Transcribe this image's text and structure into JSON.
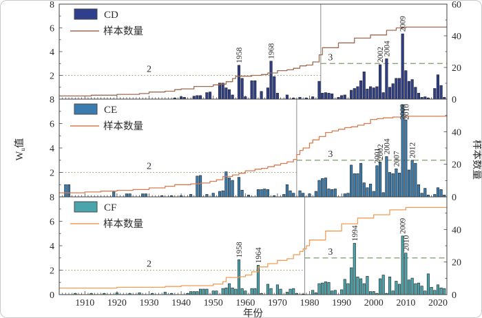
{
  "axes": {
    "x_range": [
      1902,
      2022.8
    ],
    "x_ticks": [
      1910,
      1920,
      1930,
      1940,
      1950,
      1960,
      1970,
      1980,
      1990,
      2000,
      2010,
      2020
    ],
    "x_label": "年份",
    "y_left_ticks": [
      0,
      2,
      4,
      6,
      8
    ],
    "y_right_ticks": [
      0,
      20,
      40,
      60
    ],
    "y_left_label": {
      "pre": "W",
      "sub": "u",
      "post": "值"
    },
    "y_right_label": "样本数量"
  },
  "styles": {
    "axis_color": "#3f3f3f",
    "bar_stroke": "#1f1f1f",
    "threshold_dotted_color": "#8f9d68",
    "threshold_dashed_color": "#7c9b66",
    "changepoint_color": "#8a8a8a",
    "text_color": "#2b2b2b"
  },
  "chart_data": [
    {
      "type": "bar",
      "name": "CD",
      "legend": {
        "bars": "CD",
        "line": "样本数量"
      },
      "colors": {
        "bar": "#2f3f8c",
        "line": "#9e6a52"
      },
      "ylim_left": [
        0,
        8
      ],
      "ylim_right": [
        0,
        60
      ],
      "change_point": 1983.5,
      "threshold_before": {
        "value": 2,
        "label": "2",
        "label_year": 1930
      },
      "threshold_after": {
        "value": 3,
        "label": "3",
        "label_year": 1986.5
      },
      "annotations": [
        1958,
        1968,
        2002,
        2004,
        2009
      ],
      "bars": [
        [
          1938,
          0.1
        ],
        [
          1940,
          0.2
        ],
        [
          1941,
          0.15
        ],
        [
          1944,
          0.25
        ],
        [
          1945,
          0.3
        ],
        [
          1946,
          0.3
        ],
        [
          1948,
          0.55
        ],
        [
          1949,
          0.6
        ],
        [
          1952,
          1.35
        ],
        [
          1953,
          1.35
        ],
        [
          1954,
          0.95
        ],
        [
          1955,
          0.8
        ],
        [
          1956,
          0.35
        ],
        [
          1958,
          2.85
        ],
        [
          1959,
          1.75
        ],
        [
          1960,
          0.2
        ],
        [
          1962,
          1.55
        ],
        [
          1963,
          1.55
        ],
        [
          1965,
          0.65
        ],
        [
          1967,
          0.95
        ],
        [
          1968,
          3.2
        ],
        [
          1969,
          1.9
        ],
        [
          1970,
          0.5
        ],
        [
          1973,
          0.35
        ],
        [
          1975,
          0.1
        ],
        [
          1977,
          0.15
        ],
        [
          1979,
          0.1
        ],
        [
          1981,
          0.2
        ],
        [
          1983,
          1.5
        ],
        [
          1984,
          0.5
        ],
        [
          1985,
          0.55
        ],
        [
          1986,
          0.5
        ],
        [
          1987,
          0.45
        ],
        [
          1989,
          0.15
        ],
        [
          1990,
          0.3
        ],
        [
          1991,
          0.35
        ],
        [
          1993,
          0.75
        ],
        [
          1994,
          0.9
        ],
        [
          1995,
          1.05
        ],
        [
          1996,
          1.55
        ],
        [
          1997,
          2.3
        ],
        [
          1998,
          0.85
        ],
        [
          1999,
          1.05
        ],
        [
          2000,
          0.95
        ],
        [
          2001,
          1.05
        ],
        [
          2002,
          2.9
        ],
        [
          2003,
          0.55
        ],
        [
          2004,
          3.4
        ],
        [
          2005,
          1.0
        ],
        [
          2006,
          1.3
        ],
        [
          2007,
          1.75
        ],
        [
          2008,
          1.75
        ],
        [
          2009,
          5.5
        ],
        [
          2010,
          2.4
        ],
        [
          2011,
          1.5
        ],
        [
          2012,
          1.65
        ],
        [
          2013,
          1.0
        ],
        [
          2014,
          0.5
        ],
        [
          2015,
          0.15
        ],
        [
          2016,
          0.2
        ],
        [
          2017,
          0.1
        ],
        [
          2019,
          0.9
        ],
        [
          2020,
          2.05
        ],
        [
          2021,
          1.15
        ],
        [
          2022,
          0.15
        ]
      ],
      "samples": [
        [
          1903,
          2
        ],
        [
          1912,
          2.5
        ],
        [
          1920,
          3
        ],
        [
          1927,
          3.5
        ],
        [
          1930,
          4.5
        ],
        [
          1935,
          5
        ],
        [
          1938,
          6
        ],
        [
          1940,
          6.5
        ],
        [
          1944,
          8
        ],
        [
          1950,
          9
        ],
        [
          1952,
          9.5
        ],
        [
          1954,
          11
        ],
        [
          1956,
          13
        ],
        [
          1957,
          14.5
        ],
        [
          1962,
          15
        ],
        [
          1965,
          15.5
        ],
        [
          1967,
          16.5
        ],
        [
          1970,
          18
        ],
        [
          1973,
          18.5
        ],
        [
          1975,
          19.5
        ],
        [
          1977,
          21
        ],
        [
          1979,
          21.5
        ],
        [
          1981,
          23.5
        ],
        [
          1983,
          28
        ],
        [
          1984,
          32.5
        ],
        [
          1989,
          35.5
        ],
        [
          1994,
          38.5
        ],
        [
          1999,
          40.5
        ],
        [
          2004,
          43.5
        ],
        [
          2007,
          45
        ],
        [
          2010,
          45.5
        ]
      ]
    },
    {
      "type": "bar",
      "name": "CE",
      "legend": {
        "bars": "CE",
        "line": "样本数量"
      },
      "colors": {
        "bar": "#3a7cae",
        "line": "#d97a4e"
      },
      "ylim_left": [
        0,
        8
      ],
      "ylim_right": [
        0,
        60
      ],
      "change_point": 1976,
      "threshold_before": {
        "value": 2,
        "label": "2",
        "label_year": 1930
      },
      "threshold_after": {
        "value": 3,
        "label": "3",
        "label_year": 1986.5
      },
      "annotations": [
        2001,
        2002,
        2004,
        2007,
        2009,
        2010,
        2012
      ],
      "bars": [
        [
          1904,
          1.0
        ],
        [
          1905,
          1.0
        ],
        [
          1919,
          0.4
        ],
        [
          1923,
          0.25
        ],
        [
          1924,
          0.25
        ],
        [
          1928,
          0.25
        ],
        [
          1929,
          0.25
        ],
        [
          1934,
          0.1
        ],
        [
          1937,
          0.1
        ],
        [
          1940,
          0.1
        ],
        [
          1943,
          0.2
        ],
        [
          1945,
          1.7
        ],
        [
          1946,
          1.75
        ],
        [
          1948,
          0.2
        ],
        [
          1950,
          0.3
        ],
        [
          1952,
          0.45
        ],
        [
          1953,
          0.5
        ],
        [
          1954,
          2.05
        ],
        [
          1955,
          1.55
        ],
        [
          1956,
          1.35
        ],
        [
          1958,
          1.6
        ],
        [
          1959,
          0.55
        ],
        [
          1961,
          0.15
        ],
        [
          1964,
          0.6
        ],
        [
          1965,
          0.6
        ],
        [
          1966,
          0.65
        ],
        [
          1967,
          0.6
        ],
        [
          1969,
          0.1
        ],
        [
          1972,
          0.2
        ],
        [
          1973,
          1.0
        ],
        [
          1974,
          0.5
        ],
        [
          1975,
          0.3
        ],
        [
          1977,
          0.5
        ],
        [
          1978,
          0.3
        ],
        [
          1980,
          0.25
        ],
        [
          1982,
          0.45
        ],
        [
          1983,
          1.35
        ],
        [
          1984,
          1.5
        ],
        [
          1985,
          1.55
        ],
        [
          1986,
          0.65
        ],
        [
          1987,
          0.6
        ],
        [
          1988,
          0.65
        ],
        [
          1991,
          0.25
        ],
        [
          1992,
          0.3
        ],
        [
          1993,
          2.6
        ],
        [
          1994,
          1.9
        ],
        [
          1995,
          1.9
        ],
        [
          1996,
          2.75
        ],
        [
          1997,
          1.15
        ],
        [
          1998,
          0.75
        ],
        [
          1999,
          1.05
        ],
        [
          2000,
          0.45
        ],
        [
          2001,
          2.55
        ],
        [
          2002,
          2.85
        ],
        [
          2003,
          0.35
        ],
        [
          2004,
          3.3
        ],
        [
          2005,
          2.0
        ],
        [
          2006,
          1.9
        ],
        [
          2007,
          2.3
        ],
        [
          2008,
          1.95
        ],
        [
          2009,
          7.5
        ],
        [
          2010,
          6.3
        ],
        [
          2011,
          2.2
        ],
        [
          2012,
          3.0
        ],
        [
          2013,
          2.75
        ],
        [
          2014,
          1.0
        ],
        [
          2015,
          0.3
        ],
        [
          2016,
          0.7
        ],
        [
          2017,
          0.15
        ],
        [
          2019,
          0.2
        ],
        [
          2020,
          0.75
        ],
        [
          2021,
          0.6
        ],
        [
          2022,
          0.15
        ]
      ],
      "samples": [
        [
          1903,
          2.5
        ],
        [
          1910,
          3
        ],
        [
          1915,
          3.5
        ],
        [
          1920,
          4
        ],
        [
          1925,
          4.5
        ],
        [
          1930,
          5.5
        ],
        [
          1935,
          6.5
        ],
        [
          1938,
          7.5
        ],
        [
          1943,
          8
        ],
        [
          1946,
          8.5
        ],
        [
          1949,
          9.5
        ],
        [
          1951,
          10.5
        ],
        [
          1953,
          12.5
        ],
        [
          1956,
          13.5
        ],
        [
          1958,
          14.5
        ],
        [
          1960,
          16
        ],
        [
          1963,
          17
        ],
        [
          1965,
          17.5
        ],
        [
          1967,
          18.5
        ],
        [
          1969,
          19.5
        ],
        [
          1971,
          20.5
        ],
        [
          1973,
          21.5
        ],
        [
          1975,
          23
        ],
        [
          1976,
          26
        ],
        [
          1977,
          28.5
        ],
        [
          1978,
          30
        ],
        [
          1980,
          33
        ],
        [
          1981,
          35
        ],
        [
          1983,
          37
        ],
        [
          1985,
          39.5
        ],
        [
          1987,
          40.5
        ],
        [
          1989,
          41.5
        ],
        [
          1991,
          42.5
        ],
        [
          1993,
          43
        ],
        [
          1995,
          44
        ],
        [
          1997,
          45
        ],
        [
          1999,
          47.5
        ],
        [
          2001,
          48
        ],
        [
          2003,
          48.5
        ],
        [
          2006,
          49
        ],
        [
          2010,
          49.5
        ]
      ]
    },
    {
      "type": "bar",
      "name": "CF",
      "legend": {
        "bars": "CF",
        "line": "样本数量"
      },
      "colors": {
        "bar": "#4aa4ab",
        "line": "#f29c55"
      },
      "ylim_left": [
        0,
        8
      ],
      "ylim_right": [
        0,
        60
      ],
      "change_point": 1978.5,
      "threshold_before": {
        "value": 2,
        "label": "2",
        "label_year": 1930
      },
      "threshold_after": {
        "value": 3,
        "label": "3",
        "label_year": 1986.5
      },
      "annotations": [
        1958,
        1964,
        1994,
        2009,
        2010
      ],
      "bars": [
        [
          1907,
          0.1
        ],
        [
          1912,
          0.1
        ],
        [
          1916,
          0.1
        ],
        [
          1920,
          0.15
        ],
        [
          1924,
          0.1
        ],
        [
          1927,
          0.15
        ],
        [
          1931,
          0.1
        ],
        [
          1935,
          0.2
        ],
        [
          1937,
          0.1
        ],
        [
          1942,
          0.1
        ],
        [
          1943,
          0.25
        ],
        [
          1944,
          0.25
        ],
        [
          1945,
          0.25
        ],
        [
          1946,
          0.45
        ],
        [
          1947,
          0.45
        ],
        [
          1948,
          0.45
        ],
        [
          1950,
          0.3
        ],
        [
          1951,
          0.3
        ],
        [
          1953,
          0.5
        ],
        [
          1954,
          0.55
        ],
        [
          1955,
          0.9
        ],
        [
          1956,
          0.55
        ],
        [
          1957,
          0.45
        ],
        [
          1958,
          2.85
        ],
        [
          1959,
          0.5
        ],
        [
          1960,
          0.3
        ],
        [
          1962,
          0.5
        ],
        [
          1963,
          0.5
        ],
        [
          1964,
          2.4
        ],
        [
          1965,
          0.1
        ],
        [
          1967,
          0.85
        ],
        [
          1968,
          0.5
        ],
        [
          1970,
          0.8
        ],
        [
          1971,
          0.45
        ],
        [
          1973,
          0.2
        ],
        [
          1974,
          0.45
        ],
        [
          1975,
          0.5
        ],
        [
          1976,
          0.1
        ],
        [
          1978,
          0.05
        ],
        [
          1981,
          0.35
        ],
        [
          1982,
          0.15
        ],
        [
          1983,
          0.9
        ],
        [
          1984,
          0.95
        ],
        [
          1985,
          1.05
        ],
        [
          1986,
          1.0
        ],
        [
          1987,
          0.3
        ],
        [
          1988,
          0.35
        ],
        [
          1990,
          0.4
        ],
        [
          1991,
          1.25
        ],
        [
          1992,
          0.9
        ],
        [
          1993,
          2.2
        ],
        [
          1994,
          4.2
        ],
        [
          1995,
          1.45
        ],
        [
          1996,
          1.3
        ],
        [
          1997,
          0.9
        ],
        [
          1998,
          1.5
        ],
        [
          1999,
          0.25
        ],
        [
          2000,
          0.25
        ],
        [
          2001,
          0.1
        ],
        [
          2002,
          1.3
        ],
        [
          2003,
          1.6
        ],
        [
          2004,
          0.1
        ],
        [
          2005,
          1.45
        ],
        [
          2006,
          0.3
        ],
        [
          2007,
          1.1
        ],
        [
          2008,
          0.85
        ],
        [
          2009,
          4.8
        ],
        [
          2010,
          3.4
        ],
        [
          2011,
          1.2
        ],
        [
          2012,
          1.35
        ],
        [
          2013,
          0.9
        ],
        [
          2014,
          0.95
        ],
        [
          2015,
          0.7
        ],
        [
          2016,
          0.3
        ],
        [
          2017,
          1.7
        ],
        [
          2018,
          0.6
        ],
        [
          2019,
          0.35
        ],
        [
          2020,
          0.8
        ],
        [
          2021,
          0.55
        ],
        [
          2022,
          0.5
        ]
      ],
      "samples": [
        [
          1903,
          4
        ],
        [
          1920,
          4.5
        ],
        [
          1935,
          5
        ],
        [
          1940,
          5.5
        ],
        [
          1950,
          6.5
        ],
        [
          1953,
          8
        ],
        [
          1954,
          10.5
        ],
        [
          1958,
          11
        ],
        [
          1960,
          12
        ],
        [
          1962,
          14
        ],
        [
          1964,
          17
        ],
        [
          1967,
          19
        ],
        [
          1970,
          21
        ],
        [
          1973,
          22
        ],
        [
          1975,
          24.5
        ],
        [
          1977,
          26.5
        ],
        [
          1978,
          28
        ],
        [
          1979,
          30
        ],
        [
          1980,
          33.5
        ],
        [
          1985,
          39
        ],
        [
          1990,
          43.5
        ],
        [
          1995,
          47
        ],
        [
          2000,
          49
        ],
        [
          2005,
          52
        ],
        [
          2010,
          53.5
        ]
      ]
    }
  ]
}
